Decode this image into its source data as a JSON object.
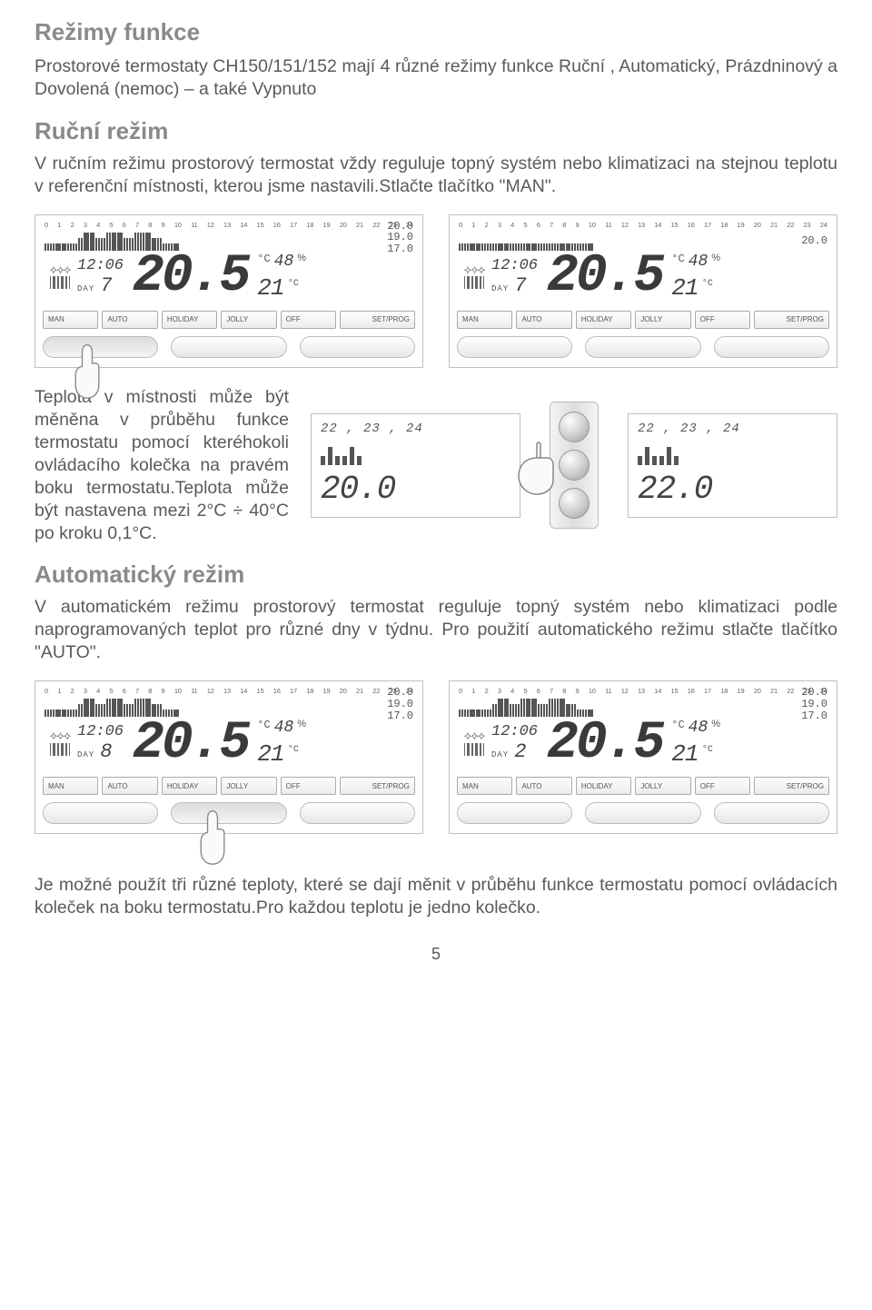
{
  "title_main": "Režimy funkce",
  "para_intro": "Prostorové termostaty CH150/151/152 mají 4 různé režimy funkce Ruční , Automatický, Prázdninový a Dovolená (nemoc) – a také Vypnuto",
  "title_manual": "Ruční režim",
  "para_manual": "V ručním režimu prostorový termostat vždy reguluje topný systém nebo klimatizaci na stejnou teplotu v referenční místnosti, kterou jsme nastavili.Stlačte tlačítko \"MAN\".",
  "para_mid": "Teplota v místnosti může být měněna v průběhu funkce termostatu pomocí kteréhokoli ovládacího kolečka na pravém boku termostatu.Teplota může být nastavena mezi 2°C ÷ 40°C po kroku 0,1°C.",
  "title_auto": "Automatický režim",
  "para_auto": "V automatickém režimu prostorový termostat reguluje topný systém nebo klimatizaci podle naprogramovaných teplot pro různé dny v týdnu. Pro použití automatického režimu stlačte tlačítko \"AUTO\".",
  "para_bottom": "Je možné použít tři různé teploty, které se dají měnit v průběhu funkce termostatu pomocí ovládacích koleček na boku termostatu.Pro každou teplotu je jedno kolečko.",
  "page_number": "5",
  "lcd": {
    "hours": [
      "0",
      "1",
      "2",
      "3",
      "4",
      "5",
      "6",
      "7",
      "8",
      "9",
      "10",
      "11",
      "12",
      "13",
      "14",
      "15",
      "16",
      "17",
      "18",
      "19",
      "20",
      "21",
      "22",
      "23",
      "24"
    ],
    "side_temps": [
      "20.0",
      "19.0",
      "17.0"
    ],
    "side_temps_single": [
      "20.0"
    ],
    "time": "12:06",
    "day_label": "DAY",
    "day_manual": "7",
    "day_auto_a": "8",
    "day_auto_b": "2",
    "main_temp": "20.5",
    "deg_c": "°C",
    "humidity": "48",
    "pct": "%",
    "sub_temp": "21",
    "sub_deg": "°C",
    "buttons": [
      "MAN",
      "AUTO",
      "HOLIDAY",
      "JOLLY",
      "OFF",
      "SET/PROG"
    ]
  },
  "mini": {
    "top_nums": "22 , 23 , 24",
    "temp_a": "20.0",
    "temp_b": "22.0"
  },
  "colors": {
    "heading": "#8a8a8a",
    "text": "#5a5a5a",
    "border": "#bfbfbf",
    "lcd_digit": "#3a3a3a"
  }
}
